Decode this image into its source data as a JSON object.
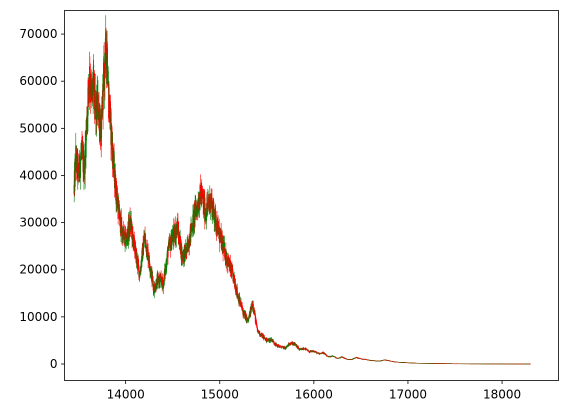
{
  "chart_data": {
    "type": "candlestick",
    "title": "",
    "xlabel": "",
    "ylabel": "",
    "xlim": [
      13350,
      18600
    ],
    "ylim": [
      -3500,
      75000
    ],
    "xticks": [
      14000,
      15000,
      16000,
      17000,
      18000
    ],
    "yticks": [
      0,
      10000,
      20000,
      30000,
      40000,
      50000,
      60000,
      70000
    ],
    "grid": false,
    "legend": "none",
    "colors": {
      "up": "#008000",
      "down": "#ff0000",
      "wick": "#404000"
    },
    "series": [
      {
        "x": [
          13450,
          13470,
          13500,
          13530,
          13560,
          13600,
          13620,
          13640,
          13660,
          13680,
          13700,
          13720,
          13740,
          13760,
          13780,
          13800,
          13820,
          13850,
          13880,
          13920,
          13960,
          14000,
          14050,
          14100,
          14150,
          14200,
          14250,
          14300,
          14350,
          14400,
          14450,
          14500,
          14550,
          14600,
          14650,
          14700,
          14750,
          14800,
          14850,
          14900,
          14950,
          15000,
          15050,
          15100,
          15150,
          15200,
          15250,
          15300,
          15350,
          15400,
          15450,
          15500,
          15550,
          15600,
          15650,
          15700,
          15750,
          15800,
          15850,
          15900,
          15950,
          16000,
          16050,
          16100,
          16150,
          16200,
          16250,
          16300,
          16350,
          16400,
          16450,
          16500,
          16550,
          16600,
          16650,
          16700,
          16750,
          16800,
          16850,
          16900,
          16950,
          17000,
          17100,
          17200,
          17300,
          17400,
          17500,
          17600,
          17700,
          17800,
          17900,
          18000,
          18100,
          18200,
          18300
        ],
        "close": [
          36000,
          44000,
          40000,
          45000,
          41000,
          57000,
          62000,
          56000,
          60000,
          52000,
          55000,
          53000,
          48000,
          58000,
          64000,
          68000,
          56000,
          48000,
          40000,
          33000,
          28000,
          26000,
          30000,
          24000,
          19000,
          27000,
          22000,
          16000,
          18000,
          17000,
          24000,
          27000,
          29000,
          23000,
          24000,
          29000,
          33000,
          36000,
          32000,
          35000,
          31000,
          27000,
          24000,
          21000,
          18000,
          14000,
          11000,
          9000,
          13000,
          7000,
          6000,
          5000,
          5200,
          4000,
          3600,
          3400,
          4500,
          4200,
          3000,
          3300,
          2600,
          2700,
          2200,
          2400,
          1500,
          1700,
          1200,
          1500,
          1000,
          950,
          1400,
          1100,
          1000,
          800,
          700,
          650,
          900,
          700,
          500,
          400,
          350,
          300,
          200,
          180,
          150,
          120,
          100,
          90,
          80,
          70,
          60,
          55,
          50,
          45,
          40
        ]
      }
    ]
  }
}
